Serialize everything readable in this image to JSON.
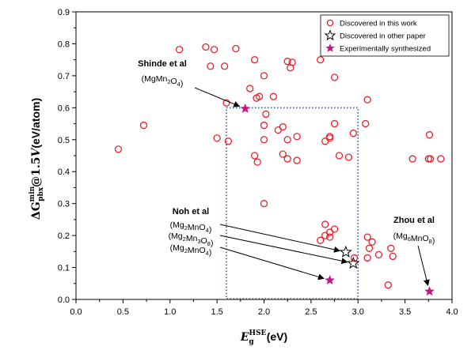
{
  "chart_data": {
    "type": "scatter",
    "xlim": [
      0.0,
      4.0
    ],
    "ylim": [
      0.0,
      0.9
    ],
    "x_ticks": [
      "0.0",
      "0.5",
      "1.0",
      "1.5",
      "2.0",
      "2.5",
      "3.0",
      "3.5",
      "4.0"
    ],
    "y_ticks": [
      "0.0",
      "0.1",
      "0.2",
      "0.3",
      "0.4",
      "0.5",
      "0.6",
      "0.7",
      "0.8",
      "0.9"
    ],
    "xlabel": {
      "symbol": "E",
      "sup": "HSE",
      "sub": "g",
      "unit": "(eV)"
    },
    "ylabel": {
      "delta": "ΔG",
      "sup": "min",
      "sub": "pbx",
      "mid": "@1.5",
      "v": "V",
      "unit": "(eV/atom)"
    },
    "legend_position": "top-right",
    "series": [
      {
        "name": "Discovered in this work",
        "marker": "open-circle",
        "color": "#e8222a",
        "points": [
          [
            0.45,
            0.47
          ],
          [
            0.72,
            0.545
          ],
          [
            1.1,
            0.782
          ],
          [
            1.38,
            0.79
          ],
          [
            1.43,
            0.73
          ],
          [
            1.47,
            0.782
          ],
          [
            1.5,
            0.505
          ],
          [
            1.58,
            0.73
          ],
          [
            1.62,
            0.495
          ],
          [
            1.7,
            0.785
          ],
          [
            1.6,
            0.615
          ],
          [
            1.85,
            0.66
          ],
          [
            1.92,
            0.63
          ],
          [
            1.9,
            0.75
          ],
          [
            1.95,
            0.635
          ],
          [
            2.0,
            0.545
          ],
          [
            2.0,
            0.7
          ],
          [
            2.02,
            0.58
          ],
          [
            2.1,
            0.635
          ],
          [
            2.15,
            0.53
          ],
          [
            2.2,
            0.54
          ],
          [
            2.25,
            0.5
          ],
          [
            2.25,
            0.745
          ],
          [
            2.28,
            0.725
          ],
          [
            2.3,
            0.742
          ],
          [
            2.35,
            0.51
          ],
          [
            1.9,
            0.45
          ],
          [
            1.93,
            0.43
          ],
          [
            2.0,
            0.5
          ],
          [
            2.2,
            0.455
          ],
          [
            2.25,
            0.44
          ],
          [
            2.35,
            0.435
          ],
          [
            2.0,
            0.3
          ],
          [
            2.6,
            0.75
          ],
          [
            2.75,
            0.695
          ],
          [
            2.65,
            0.495
          ],
          [
            2.7,
            0.51
          ],
          [
            2.7,
            0.505
          ],
          [
            2.75,
            0.55
          ],
          [
            2.8,
            0.45
          ],
          [
            2.95,
            0.52
          ],
          [
            2.9,
            0.445
          ],
          [
            3.1,
            0.625
          ],
          [
            3.08,
            0.55
          ],
          [
            3.58,
            0.44
          ],
          [
            3.75,
            0.44
          ],
          [
            3.76,
            0.515
          ],
          [
            3.77,
            0.44
          ],
          [
            3.88,
            0.44
          ],
          [
            2.65,
            0.235
          ],
          [
            2.7,
            0.21
          ],
          [
            2.75,
            0.22
          ],
          [
            2.65,
            0.2
          ],
          [
            2.6,
            0.185
          ],
          [
            2.7,
            0.195
          ],
          [
            3.1,
            0.195
          ],
          [
            3.15,
            0.18
          ],
          [
            3.12,
            0.16
          ],
          [
            3.1,
            0.13
          ],
          [
            3.22,
            0.14
          ],
          [
            3.35,
            0.16
          ],
          [
            3.37,
            0.135
          ],
          [
            3.32,
            0.045
          ],
          [
            2.96,
            0.13
          ]
        ]
      },
      {
        "name": "Discovered in other paper",
        "marker": "open-star",
        "color": "#000000",
        "points": [
          [
            2.87,
            0.148
          ],
          [
            2.95,
            0.113
          ]
        ]
      },
      {
        "name": "Experimentally synthesized",
        "marker": "filled-star",
        "color": "#c71585",
        "points": [
          [
            1.8,
            0.597
          ],
          [
            2.7,
            0.06
          ],
          [
            3.76,
            0.025
          ]
        ]
      }
    ],
    "region_box": {
      "x": [
        1.6,
        3.0
      ],
      "y": [
        0.0,
        0.6
      ],
      "color": "#2f5597",
      "style": "dotted"
    },
    "annotations": [
      {
        "name": "Shinde et al",
        "formulas": [
          [
            {
              "t": "(MgMn"
            },
            {
              "sub": "2"
            },
            {
              "t": "O"
            },
            {
              "sub": "4"
            },
            {
              "t": ")"
            }
          ]
        ],
        "targets": [
          [
            1.8,
            0.597
          ]
        ]
      },
      {
        "name": "Noh et al",
        "formulas": [
          [
            {
              "t": "(Mg"
            },
            {
              "sub": "2"
            },
            {
              "t": "MnO"
            },
            {
              "sub": "4"
            },
            {
              "t": ")"
            }
          ],
          [
            {
              "t": "(Mg"
            },
            {
              "sub": "2"
            },
            {
              "t": "Mn"
            },
            {
              "sub": "3"
            },
            {
              "t": "O"
            },
            {
              "sub": "8"
            },
            {
              "t": ")"
            }
          ],
          [
            {
              "t": "(Mg"
            },
            {
              "sub": "2"
            },
            {
              "t": "MnO"
            },
            {
              "sub": "4"
            },
            {
              "t": ")"
            }
          ]
        ],
        "targets": [
          [
            2.87,
            0.148
          ],
          [
            2.95,
            0.113
          ],
          [
            2.7,
            0.06
          ]
        ]
      },
      {
        "name": "Zhou et al",
        "formulas": [
          [
            {
              "t": "(Mg"
            },
            {
              "sub": "6"
            },
            {
              "t": "MnO"
            },
            {
              "sub": "8"
            },
            {
              "t": ")"
            }
          ]
        ],
        "targets": [
          [
            3.76,
            0.025
          ]
        ]
      }
    ]
  }
}
